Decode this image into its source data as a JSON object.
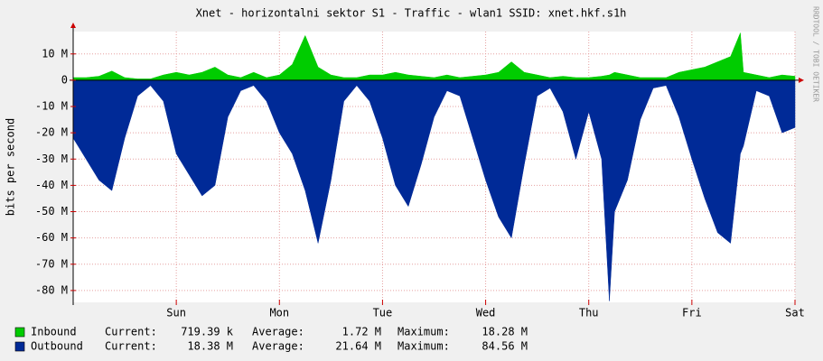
{
  "chart_data": {
    "type": "area",
    "title": "Xnet - horizontalni sektor S1 - Traffic - wlan1 SSID: xnet.hkf.s1h",
    "y_label": "bits per second",
    "watermark": "RRDTOOL / TOBI OETIKER",
    "grid": true,
    "xlim": [
      0,
      7
    ],
    "xticks": [
      {
        "value": 1,
        "label": "Sun"
      },
      {
        "value": 2,
        "label": "Mon"
      },
      {
        "value": 3,
        "label": "Tue"
      },
      {
        "value": 4,
        "label": "Wed"
      },
      {
        "value": 5,
        "label": "Thu"
      },
      {
        "value": 6,
        "label": "Fri"
      },
      {
        "value": 7,
        "label": "Sat"
      }
    ],
    "ylim": [
      -84.5,
      18.5
    ],
    "yticks": [
      {
        "value": 10,
        "label": "10 M"
      },
      0,
      {
        "value": -10,
        "label": "-10 M"
      },
      {
        "value": -20,
        "label": "-20 M"
      },
      {
        "value": -30,
        "label": "-30 M"
      },
      {
        "value": -40,
        "label": "-40 M"
      },
      {
        "value": -50,
        "label": "-50 M"
      },
      {
        "value": -60,
        "label": "-60 M"
      },
      {
        "value": -70,
        "label": "-70 M"
      },
      {
        "value": -80,
        "label": "-80 M"
      }
    ],
    "x": [
      0,
      0.125,
      0.25,
      0.375,
      0.5,
      0.625,
      0.75,
      0.875,
      1,
      1.125,
      1.25,
      1.375,
      1.5,
      1.625,
      1.75,
      1.875,
      2,
      2.125,
      2.25,
      2.375,
      2.5,
      2.625,
      2.75,
      2.875,
      3,
      3.125,
      3.25,
      3.375,
      3.5,
      3.625,
      3.75,
      3.875,
      4,
      4.125,
      4.25,
      4.375,
      4.5,
      4.625,
      4.75,
      4.875,
      5,
      5.125,
      5.2,
      5.25,
      5.375,
      5.5,
      5.625,
      5.75,
      5.875,
      6,
      6.125,
      6.25,
      6.375,
      6.47,
      6.5,
      6.625,
      6.75,
      6.875,
      7
    ],
    "series": [
      {
        "name": "Inbound",
        "color": "#00cc00",
        "current_label": "Current:",
        "current": "719.39 k",
        "average_label": "Average:",
        "average": "1.72 M",
        "maximum_label": "Maximum:",
        "maximum": "18.28 M",
        "values": [
          1,
          1,
          1.5,
          3.5,
          1,
          0.5,
          0.5,
          2,
          3,
          2,
          3,
          5,
          2,
          1,
          3,
          1,
          2,
          6,
          17,
          5,
          2,
          1,
          1,
          2,
          2,
          3,
          2,
          1.5,
          1,
          2,
          1,
          1.5,
          2,
          3,
          7,
          3,
          2,
          1,
          1.5,
          1,
          1,
          1.5,
          2,
          3,
          2,
          1,
          1,
          1,
          3,
          4,
          5,
          7,
          9,
          18,
          3,
          2,
          1,
          2,
          1.5
        ]
      },
      {
        "name": "Outbound",
        "color": "#002a97",
        "current_label": "Current:",
        "current": "18.38 M",
        "average_label": "Average:",
        "average": "21.64 M",
        "maximum_label": "Maximum:",
        "maximum": "84.56 M",
        "values": [
          -22,
          -30,
          -38,
          -42,
          -22,
          -6,
          -2,
          -8,
          -28,
          -36,
          -44,
          -40,
          -14,
          -4,
          -2,
          -8,
          -20,
          -28,
          -42,
          -62,
          -38,
          -8,
          -2,
          -8,
          -22,
          -40,
          -48,
          -32,
          -14,
          -4,
          -6,
          -22,
          -38,
          -52,
          -60,
          -32,
          -6,
          -3,
          -12,
          -30,
          -12,
          -30,
          -84,
          -50,
          -38,
          -15,
          -3,
          -2,
          -14,
          -30,
          -45,
          -58,
          -62,
          -28,
          -25,
          -4,
          -6,
          -20,
          -18
        ]
      }
    ]
  }
}
